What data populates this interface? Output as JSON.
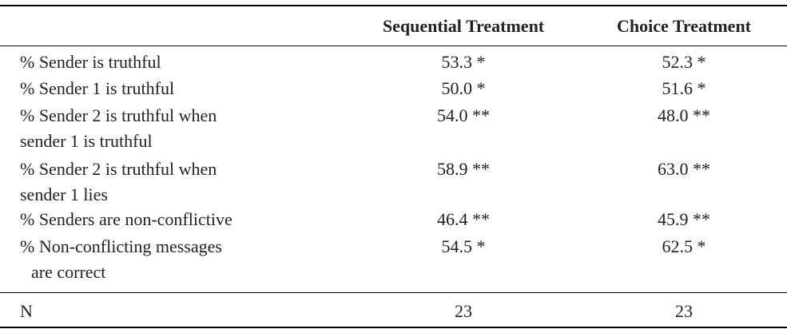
{
  "table": {
    "header": [
      "Sequential Treatment",
      "Choice Treatment"
    ],
    "rows": [
      {
        "label": [
          "% Sender is truthful"
        ],
        "cells": [
          "53.3 *",
          "52.3 *"
        ]
      },
      {
        "label": [
          "% Sender 1 is truthful"
        ],
        "cells": [
          "50.0 *",
          "51.6 *"
        ]
      },
      {
        "label": [
          "% Sender 2 is truthful when",
          "sender 1 is truthful"
        ],
        "cells": [
          "54.0 **",
          "48.0 **"
        ]
      },
      {
        "label": [
          "% Sender 2 is truthful when",
          "sender 1 lies"
        ],
        "cells": [
          "58.9 **",
          "63.0 **"
        ]
      },
      {
        "label": [
          "% Senders are non-conflictive"
        ],
        "cells": [
          "46.4 **",
          "45.9 **"
        ]
      },
      {
        "label": [
          "% Non-conflicting messages",
          "are correct"
        ],
        "cells": [
          "54.5 *",
          "62.5 *"
        ]
      }
    ],
    "footer": {
      "label": "N",
      "cells": [
        "23",
        "23"
      ]
    }
  }
}
